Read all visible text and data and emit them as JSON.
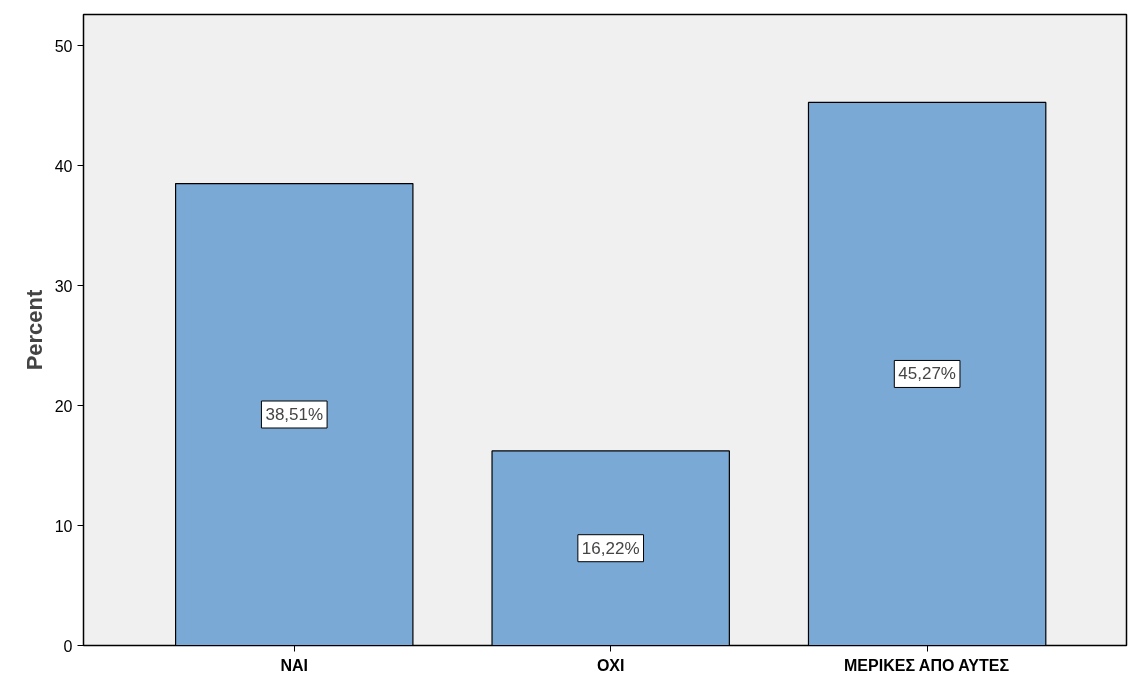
{
  "chart_data": {
    "type": "bar",
    "ylabel": "Percent",
    "categories": [
      "ΝΑΙ",
      "ΟΧΙ",
      "ΜΕΡΙΚΕΣ ΑΠΟ ΑΥΤΕΣ"
    ],
    "values": [
      38.51,
      16.22,
      45.27
    ],
    "color": "#7ba9d6",
    "value_labels": [
      "38,51%",
      "16,22%",
      "45,27%"
    ],
    "ylim": [
      0,
      52.6
    ],
    "yticks": [
      0,
      10,
      20,
      30,
      40,
      50
    ],
    "grid": false,
    "legend": false
  }
}
